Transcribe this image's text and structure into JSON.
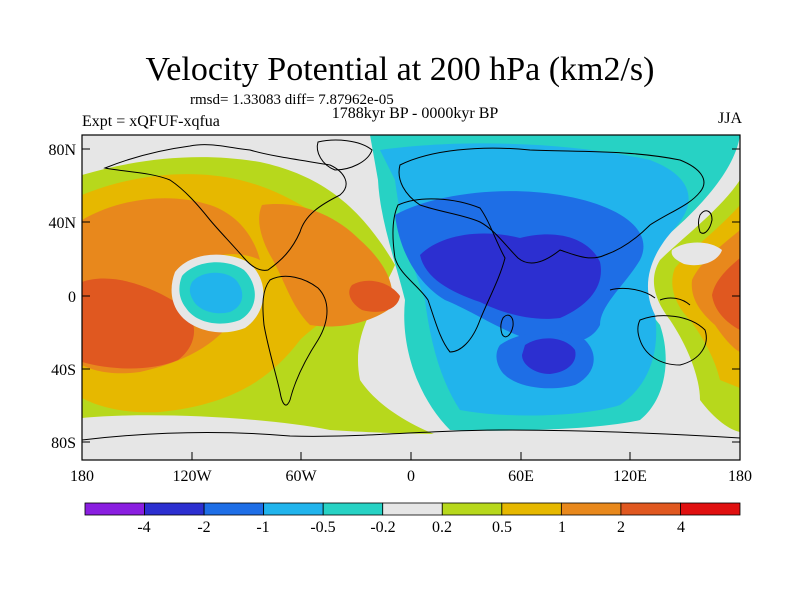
{
  "title": "Velocity Potential at 200 hPa (km2/s)",
  "stats": "rmsd= 1.33083 diff= 7.87962e-05",
  "period": "1788kyr BP - 0000kyr BP",
  "experiment": "Expt = xQFUF-xqfua",
  "season": "JJA",
  "axes": {
    "lat_labels": [
      "80N",
      "40N",
      "0",
      "40S",
      "80S"
    ],
    "lon_labels": [
      "180",
      "120W",
      "60W",
      "0",
      "60E",
      "120E",
      "180"
    ]
  },
  "colorbar": {
    "labels": [
      "-4",
      "-2",
      "-1",
      "-0.5",
      "-0.2",
      "0.2",
      "0.5",
      "1",
      "2",
      "4"
    ],
    "colors": [
      "#8a1ee0",
      "#2c2fd0",
      "#1e6ee6",
      "#21b4ec",
      "#27d2c4",
      "#e6e6e6",
      "#b7d81c",
      "#e6b800",
      "#e8881c",
      "#e05820",
      "#e01010"
    ]
  },
  "field_colors": {
    "land_outline": "#000000",
    "frame": "#000000"
  }
}
